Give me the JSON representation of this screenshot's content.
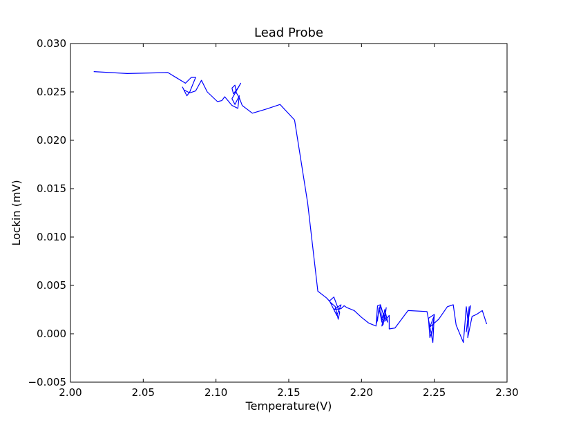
{
  "chart_data": {
    "type": "line",
    "title": "Lead Probe",
    "xlabel": "Temperature(V)",
    "ylabel": "Lockin (mV)",
    "xlim": [
      2.0,
      2.3
    ],
    "ylim": [
      -0.005,
      0.03
    ],
    "xticks": [
      2.0,
      2.05,
      2.1,
      2.15,
      2.2,
      2.25,
      2.3
    ],
    "xtick_labels": [
      "2.00",
      "2.05",
      "2.10",
      "2.15",
      "2.20",
      "2.25",
      "2.30"
    ],
    "yticks": [
      -0.005,
      0.0,
      0.005,
      0.01,
      0.015,
      0.02,
      0.025,
      0.03
    ],
    "ytick_labels": [
      "−0.005",
      "0.000",
      "0.005",
      "0.010",
      "0.015",
      "0.020",
      "0.025",
      "0.030"
    ],
    "grid": false,
    "series": [
      {
        "color": "#0000ff",
        "x": [
          2.016,
          2.039,
          2.067,
          2.079,
          2.083,
          2.086,
          2.082,
          2.08,
          2.077,
          2.078,
          2.082,
          2.086,
          2.09,
          2.094,
          2.101,
          2.104,
          2.106,
          2.111,
          2.115,
          2.116,
          2.113,
          2.111,
          2.114,
          2.117,
          2.115,
          2.112,
          2.111,
          2.113,
          2.114,
          2.116,
          2.118,
          2.125,
          2.134,
          2.144,
          2.154,
          2.163,
          2.17,
          2.176,
          2.179,
          2.182,
          2.184,
          2.185,
          2.181,
          2.178,
          2.181,
          2.183,
          2.186,
          2.181,
          2.186,
          2.188,
          2.19,
          2.195,
          2.2,
          2.205,
          2.21,
          2.211,
          2.213,
          2.214,
          2.212,
          2.211,
          2.21,
          2.213,
          2.216,
          2.217,
          2.215,
          2.214,
          2.216,
          2.218,
          2.215,
          2.214,
          2.216,
          2.219,
          2.219,
          2.223,
          2.232,
          2.245,
          2.249,
          2.25,
          2.246,
          2.247,
          2.249,
          2.248,
          2.25,
          2.247,
          2.253,
          2.259,
          2.263,
          2.265,
          2.27,
          2.272,
          2.273,
          2.275,
          2.272,
          2.274,
          2.273,
          2.276,
          2.279,
          2.283,
          2.286
        ],
        "y": [
          0.0271,
          0.0269,
          0.027,
          0.0259,
          0.0265,
          0.0265,
          0.025,
          0.0246,
          0.0255,
          0.0252,
          0.0249,
          0.0251,
          0.0262,
          0.025,
          0.024,
          0.0241,
          0.0245,
          0.0236,
          0.0233,
          0.0246,
          0.0237,
          0.0243,
          0.0251,
          0.0259,
          0.0254,
          0.0248,
          0.0254,
          0.0257,
          0.0249,
          0.0244,
          0.0236,
          0.0228,
          0.0232,
          0.0237,
          0.0221,
          0.0135,
          0.0044,
          0.0037,
          0.0032,
          0.0028,
          0.0015,
          0.0022,
          0.0038,
          0.0034,
          0.0025,
          0.0019,
          0.003,
          0.0025,
          0.0026,
          0.0029,
          0.0027,
          0.0024,
          0.0017,
          0.0011,
          0.0008,
          0.0029,
          0.003,
          0.0012,
          0.0027,
          0.0014,
          0.001,
          0.003,
          0.0015,
          0.0027,
          0.001,
          0.0008,
          0.0025,
          0.0012,
          0.0021,
          0.0015,
          0.0013,
          0.0019,
          0.0005,
          0.0006,
          0.0024,
          0.0023,
          -0.0009,
          0.002,
          0.0016,
          -0.0004,
          0.0006,
          -0.0001,
          0.0019,
          0.0007,
          0.0015,
          0.0028,
          0.003,
          0.0009,
          -0.0009,
          0.0028,
          0.0015,
          0.0029,
          0.0002,
          0.0028,
          -0.0004,
          0.0018,
          0.002,
          0.0024,
          0.001
        ]
      }
    ]
  }
}
